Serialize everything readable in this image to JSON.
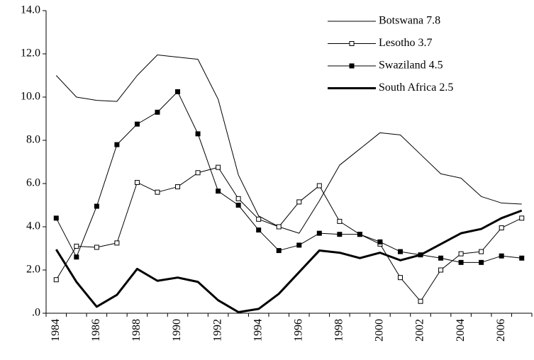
{
  "chart_data": {
    "type": "line",
    "categories": [
      "1984",
      null,
      "1986",
      null,
      "1988",
      null,
      "1990",
      null,
      "1992",
      null,
      "1994",
      null,
      "1996",
      null,
      "1998",
      null,
      "2000",
      null,
      "2002",
      null,
      "2004",
      null,
      "2006",
      null
    ],
    "ylim": [
      0,
      14
    ],
    "yticks": [
      {
        "value": 0,
        "label": ".0"
      },
      {
        "value": 2,
        "label": "2.0"
      },
      {
        "value": 4,
        "label": "4.0"
      },
      {
        "value": 6,
        "label": "6.0"
      },
      {
        "value": 8,
        "label": "8.0"
      },
      {
        "value": 10,
        "label": "10.0"
      },
      {
        "value": 12,
        "label": "12.0"
      },
      {
        "value": 14,
        "label": "14.0"
      }
    ],
    "legend": "top-right",
    "series": [
      {
        "name": "Botswana 7.8",
        "color": "#000000",
        "line_width": 1,
        "marker": "none",
        "values": [
          11.0,
          10.0,
          9.85,
          9.8,
          11.0,
          11.95,
          11.85,
          11.75,
          9.9,
          6.4,
          4.5,
          4.0,
          3.7,
          5.2,
          6.85,
          7.6,
          8.35,
          8.25,
          7.35,
          6.45,
          6.25,
          5.4,
          5.1,
          5.05
        ]
      },
      {
        "name": "Lesotho 3.7",
        "color": "#000000",
        "line_width": 1,
        "marker": "open-square",
        "values": [
          1.55,
          3.1,
          3.05,
          3.25,
          6.05,
          5.6,
          5.85,
          6.5,
          6.75,
          5.3,
          4.35,
          4.0,
          5.15,
          5.9,
          4.25,
          3.65,
          3.2,
          1.65,
          0.55,
          2.0,
          2.75,
          2.85,
          3.95,
          4.4
        ]
      },
      {
        "name": "Swaziland 4.5",
        "color": "#000000",
        "line_width": 1,
        "marker": "filled-square",
        "values": [
          4.4,
          2.6,
          4.95,
          7.8,
          8.75,
          9.3,
          10.25,
          8.3,
          5.65,
          5.0,
          3.85,
          2.9,
          3.15,
          3.7,
          3.65,
          3.65,
          3.3,
          2.85,
          2.7,
          2.55,
          2.35,
          2.35,
          2.65,
          2.55
        ]
      },
      {
        "name": "South Africa 2.5",
        "color": "#000000",
        "line_width": 3,
        "marker": "none",
        "values": [
          2.95,
          1.45,
          0.3,
          0.85,
          2.05,
          1.5,
          1.65,
          1.45,
          0.6,
          0.05,
          0.2,
          0.9,
          1.9,
          2.9,
          2.8,
          2.55,
          2.8,
          2.45,
          2.7,
          3.2,
          3.7,
          3.9,
          4.4,
          4.75
        ]
      }
    ]
  }
}
